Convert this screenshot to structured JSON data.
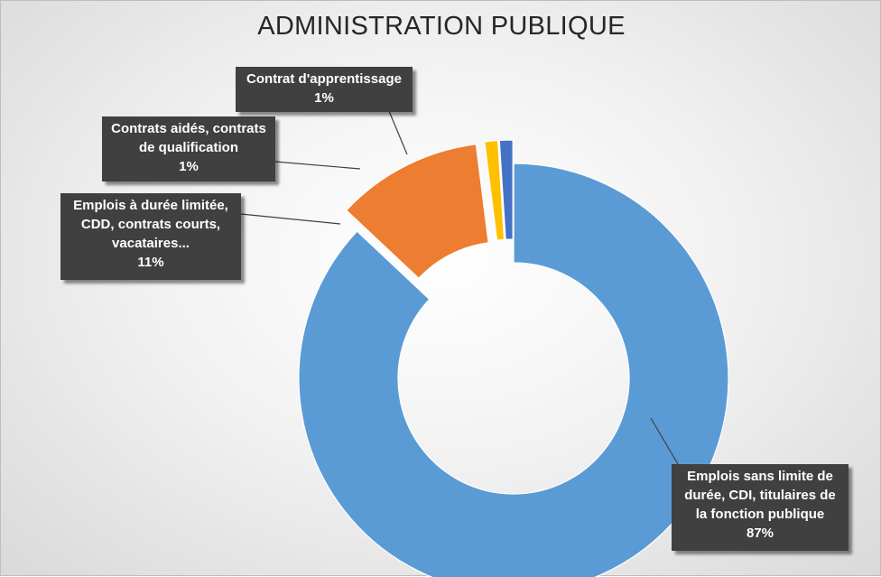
{
  "chart_data": {
    "type": "donut",
    "title": "ADMINISTRATION PUBLIQUE",
    "categories": [
      "Emplois sans limite de durée, CDI, titulaires de la fonction publique",
      "Emplois à durée limitée, CDD, contrats courts, vacataires...",
      "Contrats aidés, contrats de qualification",
      "Contrat d'apprentissage"
    ],
    "values": [
      87,
      11,
      1,
      1
    ],
    "value_labels": [
      "87%",
      "11%",
      "1%",
      "1%"
    ],
    "colors": [
      "#5B9BD5",
      "#ED7D31",
      "#FFC000",
      "#4472C4"
    ],
    "label_lines": [
      [
        "Emplois sans limite de",
        "durée, CDI, titulaires de",
        "la fonction publique"
      ],
      [
        "Emplois à durée limitée,",
        "CDD, contrats courts,",
        "vacataires..."
      ],
      [
        "Contrats aidés, contrats",
        "de qualification"
      ],
      [
        "Contrat d'apprentissage"
      ]
    ],
    "legend": "none"
  }
}
